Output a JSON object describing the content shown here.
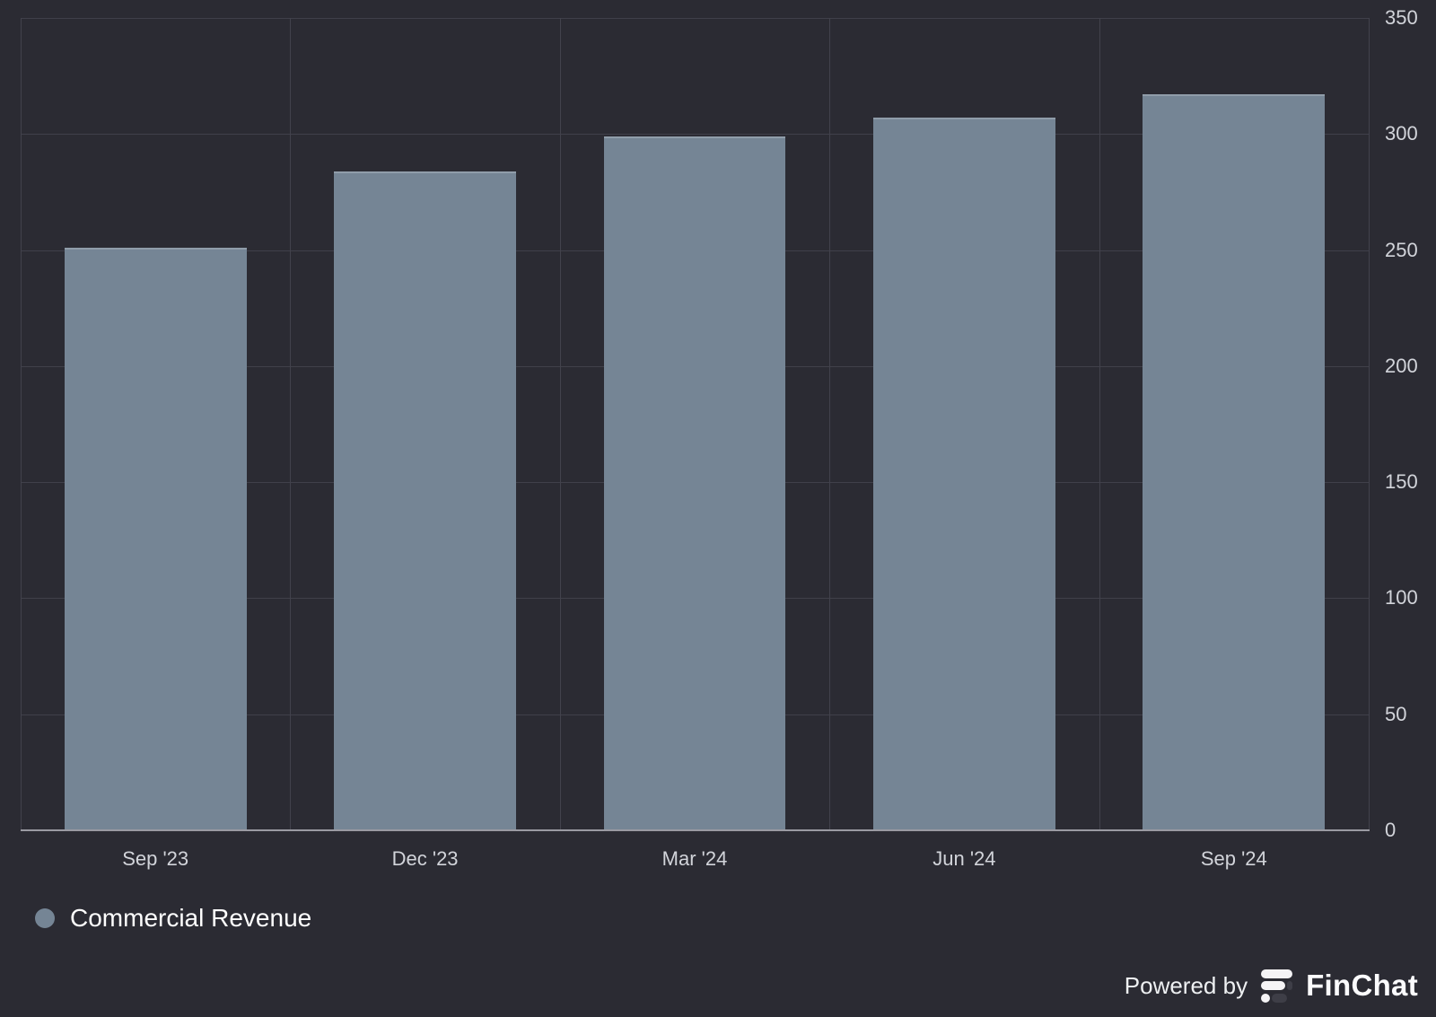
{
  "chart_data": {
    "type": "bar",
    "categories": [
      "Sep '23",
      "Dec '23",
      "Mar '24",
      "Jun '24",
      "Sep '24"
    ],
    "series": [
      {
        "name": "Commercial Revenue",
        "values": [
          251,
          284,
          299,
          307,
          317
        ],
        "color": "#758595"
      }
    ],
    "title": "",
    "xlabel": "",
    "ylabel": "",
    "ylim": [
      0,
      350
    ],
    "yticks": [
      0,
      50,
      100,
      150,
      200,
      250,
      300,
      350
    ],
    "grid": true,
    "y_axis_side": "right",
    "legend_position": "bottom-left"
  },
  "legend": {
    "items": [
      {
        "label": "Commercial Revenue",
        "color": "#758595"
      }
    ]
  },
  "footer": {
    "powered_by_label": "Powered by",
    "brand": "FinChat"
  },
  "colors": {
    "background": "#2b2b33",
    "bar": "#758595",
    "gridline": "#40404a",
    "axis_line": "#9a9aa2",
    "tick_label": "#d2d4da",
    "legend_text": "#ffffff"
  },
  "icons": {
    "legend_marker": "filled-circle",
    "brand_logo": "finchat-f-bars"
  }
}
